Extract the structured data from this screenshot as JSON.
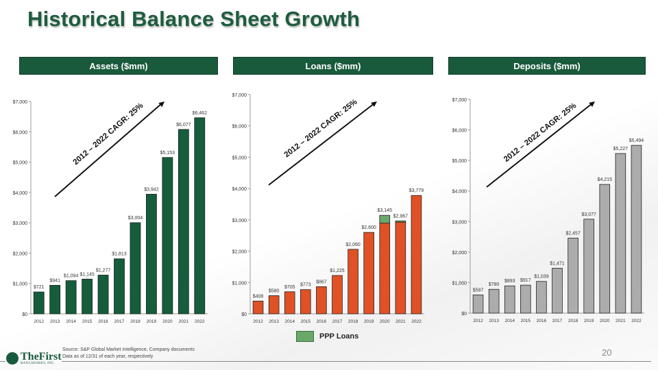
{
  "title": "Historical Balance Sheet Growth",
  "page_number": "20",
  "source_lines": [
    "Source: S&P Global Market Intelligence, Company documents",
    "Data as of 12/31 of each year, respectively"
  ],
  "logo": {
    "name": "TheFirst",
    "sub": "BANCSHARES, INC.",
    "seal": "$1"
  },
  "legend": {
    "ppp_label": "PPP Loans",
    "ppp_color": "#6aa86a"
  },
  "colors": {
    "assets": "#155d3c",
    "loans": "#e05126",
    "deposits": "#acacac",
    "ppp": "#6aa86a"
  },
  "chart_data": [
    {
      "type": "bar",
      "title": "Assets ($mm)",
      "annotation": "2012 – 2022 CAGR: 25%",
      "categories": [
        "2012",
        "2013",
        "2014",
        "2015",
        "2016",
        "2017",
        "2018",
        "2019",
        "2020",
        "2021",
        "2022"
      ],
      "values": [
        721,
        941,
        1094,
        1145,
        1277,
        1813,
        3004,
        3942,
        5153,
        6077,
        6462
      ],
      "labels": [
        "$721",
        "$941",
        "$1,094",
        "$1,145",
        "$1,277",
        "$1,813",
        "$3,004",
        "$3,942",
        "$5,153",
        "$6,077",
        "$6,462"
      ],
      "yticks": [
        "$0",
        "$1,000",
        "$2,000",
        "$3,000",
        "$4,000",
        "$5,000",
        "$6,000",
        "$7,000"
      ],
      "ylim": [
        0,
        7000
      ]
    },
    {
      "type": "bar",
      "title": "Loans ($mm)",
      "annotation": "2012 – 2022 CAGR: 25%",
      "categories": [
        "2012",
        "2013",
        "2014",
        "2015",
        "2016",
        "2017",
        "2018",
        "2019",
        "2020",
        "2021",
        "2022"
      ],
      "values": [
        408,
        580,
        705,
        773,
        867,
        1225,
        2060,
        2600,
        3145,
        2967,
        3779
      ],
      "ppp_values": [
        0,
        0,
        0,
        0,
        0,
        0,
        0,
        0,
        250,
        40,
        0
      ],
      "labels": [
        "$408",
        "$580",
        "$705",
        "$773",
        "$867",
        "$1,225",
        "$2,060",
        "$2,600",
        "$3,145",
        "$2,967",
        "$3,779"
      ],
      "yticks": [
        "$0",
        "$1,000",
        "$2,000",
        "$3,000",
        "$4,000",
        "$5,000",
        "$6,000",
        "$7,000"
      ],
      "ylim": [
        0,
        7000
      ]
    },
    {
      "type": "bar",
      "title": "Deposits ($mm)",
      "annotation": "2012 – 2022 CAGR: 25%",
      "categories": [
        "2012",
        "2013",
        "2014",
        "2015",
        "2016",
        "2017",
        "2018",
        "2019",
        "2020",
        "2021",
        "2022"
      ],
      "values": [
        597,
        780,
        893,
        917,
        1039,
        1471,
        2457,
        3077,
        4215,
        5227,
        5494
      ],
      "labels": [
        "$597",
        "$780",
        "$893",
        "$917",
        "$1,039",
        "$1,471",
        "$2,457",
        "$3,077",
        "$4,215",
        "$5,227",
        "$5,494"
      ],
      "yticks": [
        "$0",
        "$1,000",
        "$2,000",
        "$3,000",
        "$4,000",
        "$5,000",
        "$6,000",
        "$7,000"
      ],
      "ylim": [
        0,
        7000
      ]
    }
  ]
}
